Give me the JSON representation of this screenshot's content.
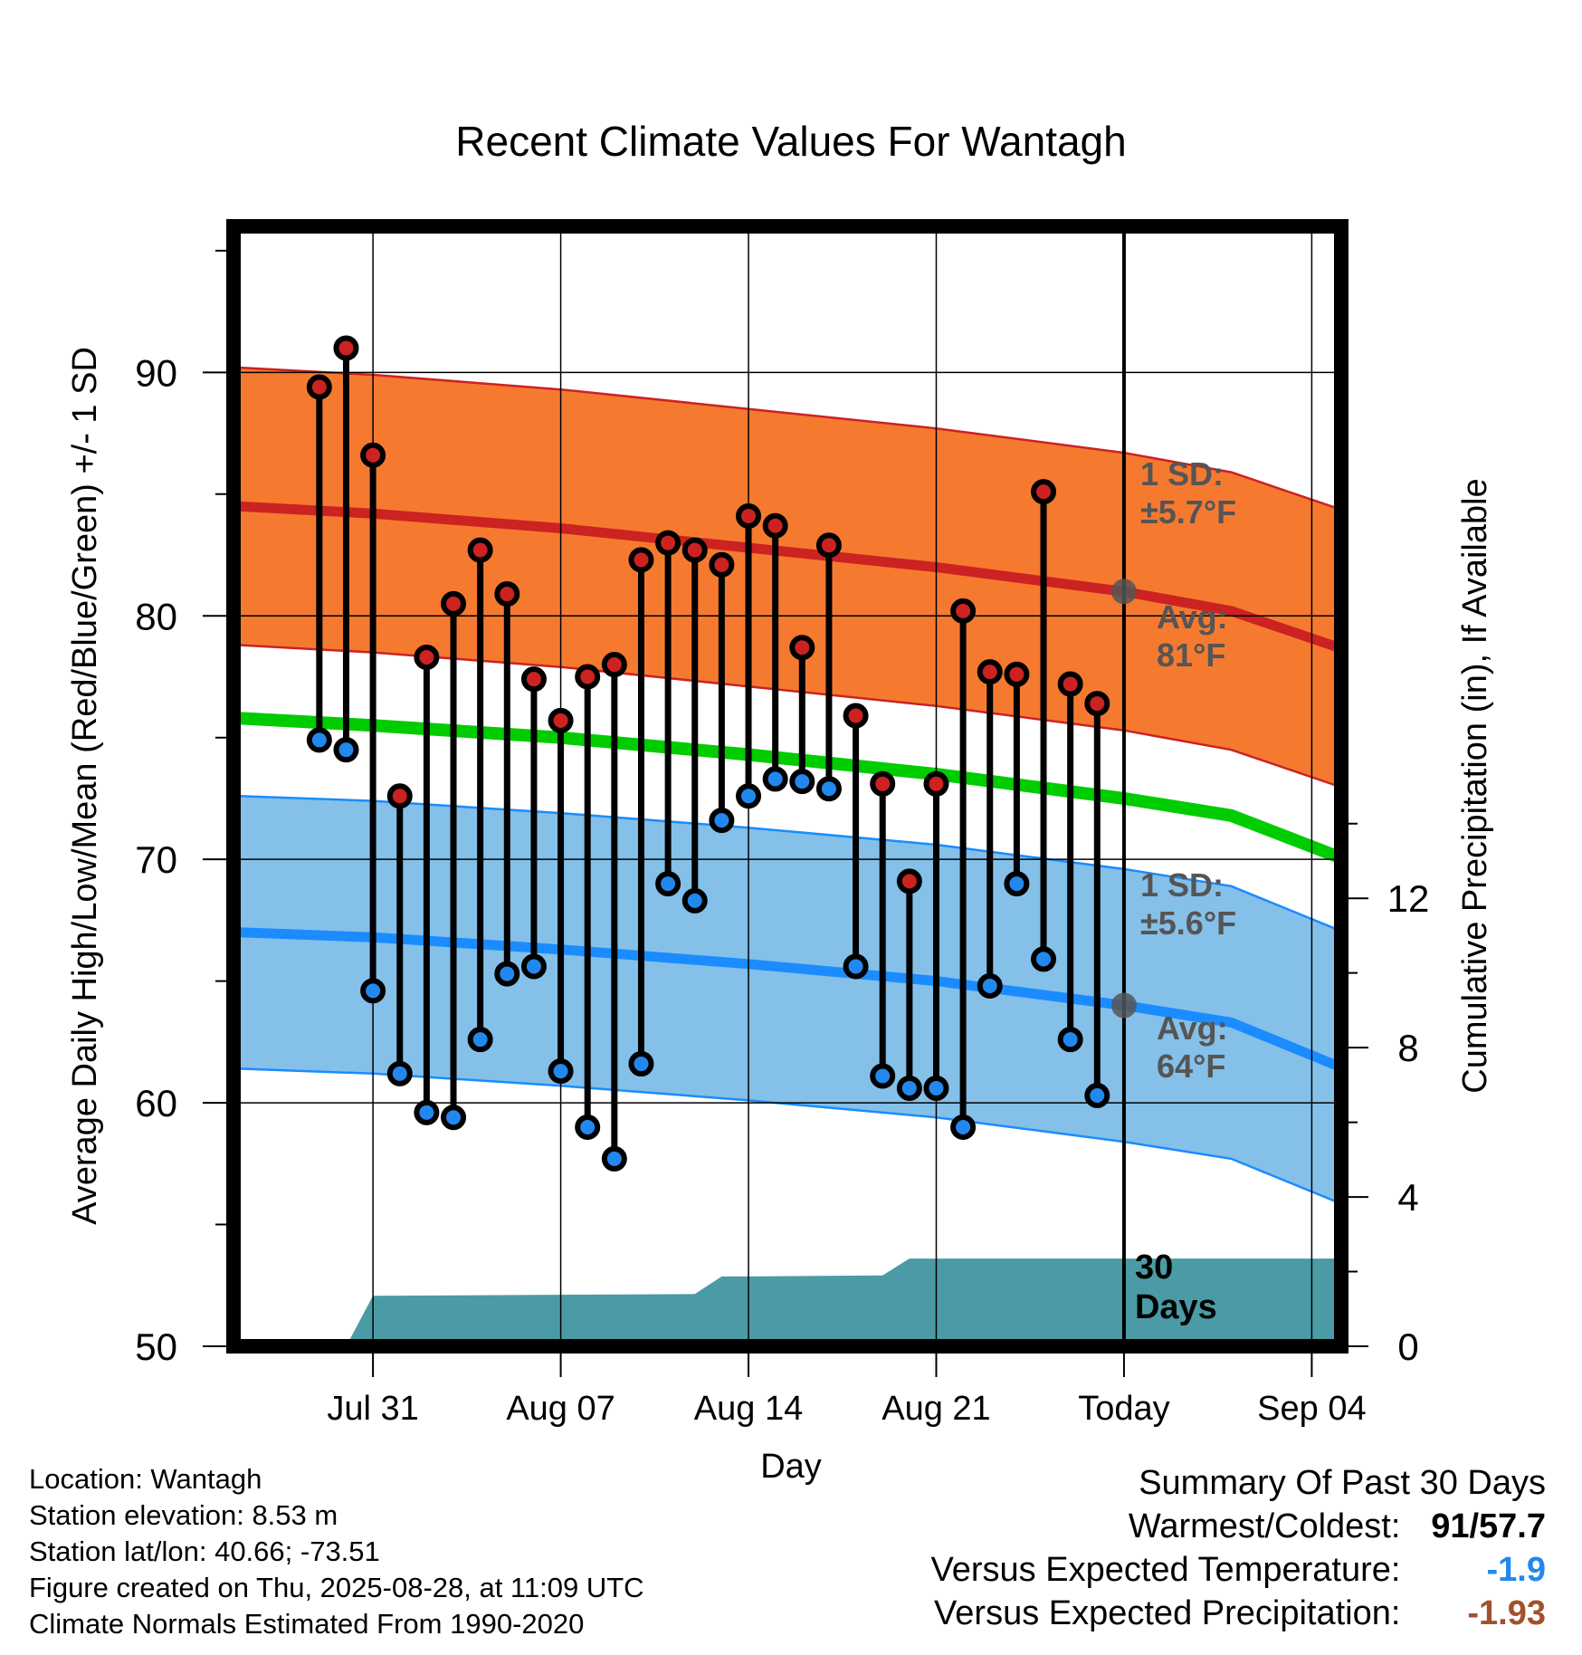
{
  "chart_data": {
    "type": "line",
    "title": "Recent Climate Values For Wantagh",
    "xlabel": "Day",
    "ylabel": "Average Daily High/Low/Mean (Red/Blue/Green) +/- 1 SD",
    "y2label": "Cumulative Precipitation (in), If Available",
    "ylim": [
      50,
      96
    ],
    "y2lim": [
      0,
      30
    ],
    "xlim": [
      -33.2,
      8.1
    ],
    "x_unit": "days relative to Today (Aug 28)",
    "x_ticks": [
      {
        "day": -28,
        "label": "Jul 31"
      },
      {
        "day": -21,
        "label": "Aug 07"
      },
      {
        "day": -14,
        "label": "Aug 14"
      },
      {
        "day": -7,
        "label": "Aug 21"
      },
      {
        "day": 0,
        "label": "Today"
      },
      {
        "day": 7,
        "label": "Sep 04"
      }
    ],
    "y_ticks": [
      "50",
      "60",
      "70",
      "80",
      "90"
    ],
    "y2_ticks": [
      "0",
      "4",
      "8",
      "12"
    ],
    "grid": true,
    "normals": {
      "x": [
        -33,
        -28,
        -21,
        -14,
        -7,
        0,
        4,
        8
      ],
      "high_mean": [
        84.5,
        84.2,
        83.6,
        82.8,
        82.0,
        81.0,
        80.2,
        78.7
      ],
      "high_sd": 5.7,
      "low_mean": [
        67.0,
        66.8,
        66.3,
        65.7,
        65.0,
        64.0,
        63.3,
        61.5
      ],
      "low_sd": 5.6,
      "avg_mean": [
        75.8,
        75.5,
        75.0,
        74.3,
        73.5,
        72.5,
        71.8,
        70.1
      ]
    },
    "series": [
      {
        "name": "High",
        "color": "#cc2222",
        "values": [
          89.4,
          91.0,
          86.6,
          72.6,
          78.3,
          80.5,
          82.7,
          80.9,
          77.4,
          75.7,
          77.5,
          78.0,
          82.3,
          83.0,
          82.7,
          82.1,
          84.1,
          83.7,
          78.7,
          82.9,
          75.9,
          73.1,
          69.1,
          73.1,
          80.2,
          77.7,
          77.6,
          85.1,
          77.2,
          76.4
        ]
      },
      {
        "name": "Low",
        "color": "#2288ee",
        "values": [
          74.9,
          74.5,
          64.6,
          61.2,
          59.6,
          59.4,
          62.6,
          65.3,
          65.6,
          61.3,
          59.0,
          57.7,
          61.6,
          69.0,
          68.3,
          71.6,
          72.6,
          73.3,
          73.2,
          72.9,
          65.6,
          61.1,
          60.6,
          60.6,
          59.0,
          64.8,
          69.0,
          65.9,
          62.6,
          60.3
        ]
      }
    ],
    "obs_start_day": -30,
    "precip": {
      "x": [
        -30,
        -29,
        -28,
        -16,
        -15,
        -14,
        -9,
        -8,
        -7,
        8
      ],
      "values": [
        0.0,
        0.0,
        1.35,
        1.4,
        1.87,
        1.87,
        1.9,
        2.35,
        2.35,
        2.35
      ]
    },
    "annotations": {
      "high_sd": [
        "1 SD:",
        "±5.7°F"
      ],
      "high_avg": [
        "Avg:",
        "81°F"
      ],
      "low_sd": [
        "1 SD:",
        "±5.6°F"
      ],
      "low_avg": [
        "Avg:",
        "64°F"
      ],
      "precip_days": [
        "30",
        "Days"
      ]
    },
    "colors": {
      "high_band": "#f57a30",
      "high_line": "#cc2222",
      "low_band": "#85c0e8",
      "low_line": "#1a8cff",
      "avg_line": "#00cc00",
      "precip": "#4a9ba5",
      "annotation": "#555555"
    }
  },
  "info": {
    "location": "Location: Wantagh",
    "elevation": "Station elevation: 8.53 m",
    "latlon": "Station lat/lon: 40.66; -73.51",
    "created": "Figure created on Thu, 2025-08-28, at 11:09 UTC",
    "normals": "Climate Normals Estimated From 1990-2020"
  },
  "summary": {
    "title": "Summary Of Past 30 Days",
    "warm_cold_label": "Warmest/Coldest:",
    "warmest": "91",
    "slash": "/",
    "coldest": "57.7",
    "temp_label": "Versus Expected Temperature:",
    "temp_value": "-1.9",
    "precip_label": "Versus Expected Precipitation:",
    "precip_value": "-1.93",
    "colors": {
      "warm": "#000000",
      "cold": "#000000",
      "temp": "#2288ee",
      "precip": "#a0522d"
    }
  }
}
